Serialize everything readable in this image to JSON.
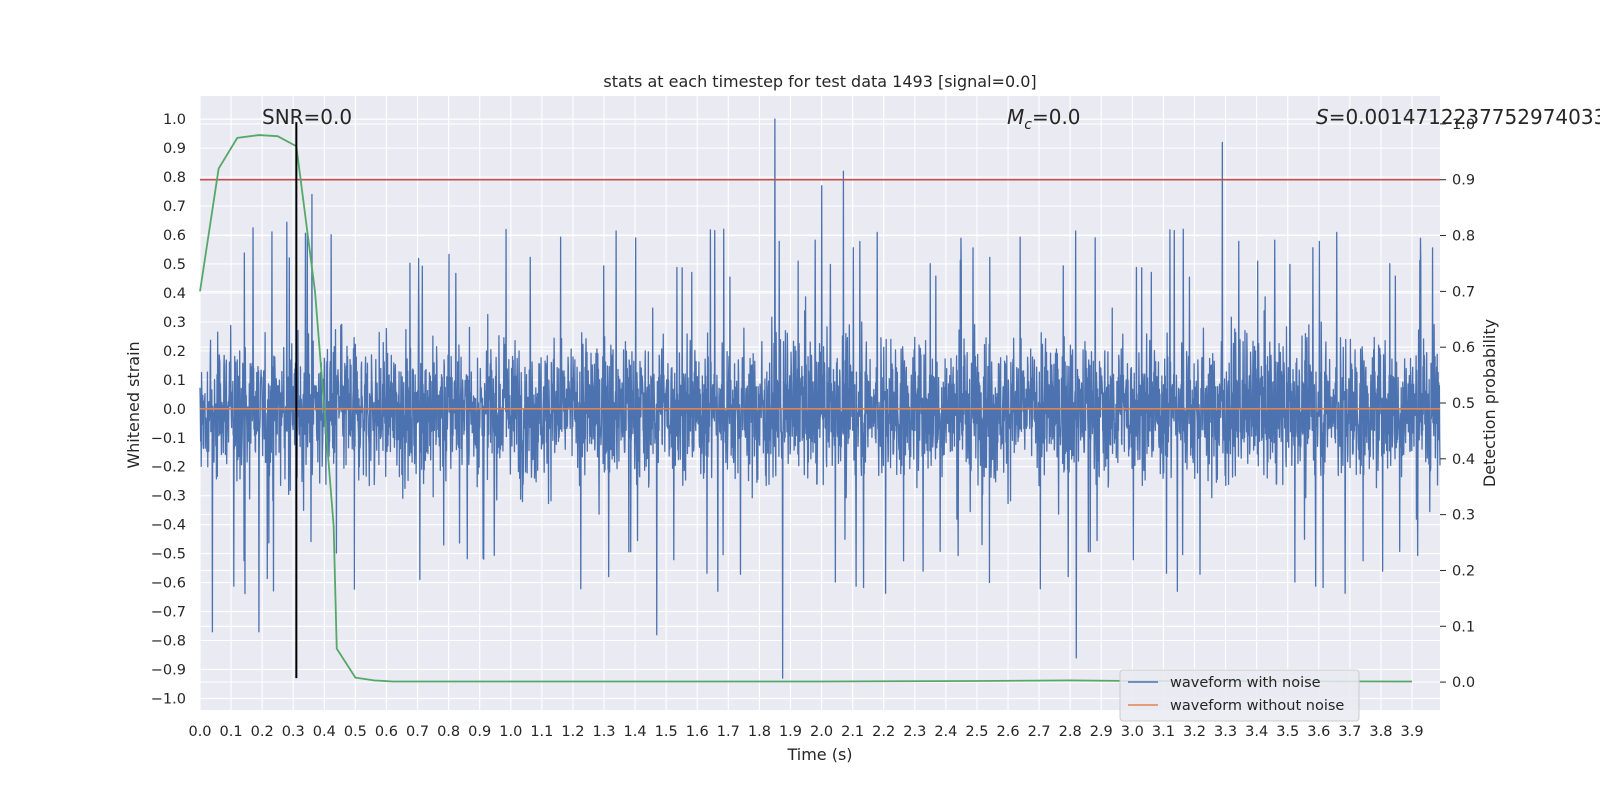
{
  "chart_data": {
    "type": "line",
    "title": "stats at each timestep for test data 1493 [signal=0.0]",
    "xlabel": "Time (s)",
    "ylabel": "Whitened strain",
    "y2label": "Detection probability",
    "xlim": [
      0.0,
      3.99
    ],
    "ylim": [
      -1.04,
      1.08
    ],
    "y2lim": [
      -0.05,
      1.05
    ],
    "x_ticks": [
      "0.0",
      "0.1",
      "0.2",
      "0.3",
      "0.4",
      "0.5",
      "0.6",
      "0.7",
      "0.8",
      "0.9",
      "1.0",
      "1.1",
      "1.2",
      "1.3",
      "1.4",
      "1.5",
      "1.6",
      "1.7",
      "1.8",
      "1.9",
      "2.0",
      "2.1",
      "2.2",
      "2.3",
      "2.4",
      "2.5",
      "2.6",
      "2.7",
      "2.8",
      "2.9",
      "3.0",
      "3.1",
      "3.2",
      "3.3",
      "3.4",
      "3.5",
      "3.6",
      "3.7",
      "3.8",
      "3.9"
    ],
    "y_ticks": [
      "1.0",
      "0.9",
      "0.8",
      "0.7",
      "0.6",
      "0.5",
      "0.4",
      "0.3",
      "0.2",
      "0.1",
      "0.0",
      "−0.1",
      "−0.2",
      "−0.3",
      "−0.4",
      "−0.5",
      "−0.6",
      "−0.7",
      "−0.8",
      "−0.9",
      "−1.0"
    ],
    "y2_ticks": [
      "1.0",
      "0.9",
      "0.8",
      "0.7",
      "0.6",
      "0.5",
      "0.4",
      "0.3",
      "0.2",
      "0.1",
      "0.0"
    ],
    "annotations": {
      "snr_label": "SNR=0.0",
      "mc_symbol": "M",
      "mc_sub": "c",
      "mc_value": "=0.0",
      "s_symbol": "S",
      "s_value": "=0.0014712237752974033"
    },
    "series": [
      {
        "name": "waveform with noise",
        "color": "#4c72b0",
        "kind": "noise",
        "n_points": 4000,
        "typical_range": [
          -0.35,
          0.35
        ],
        "spikes": [
          [
            1.85,
            1.0
          ],
          [
            1.875,
            -0.93
          ],
          [
            2.07,
            0.82
          ],
          [
            2.82,
            -0.86
          ],
          [
            3.29,
            0.92
          ],
          [
            0.04,
            -0.77
          ],
          [
            0.19,
            -0.77
          ],
          [
            0.36,
            0.74
          ],
          [
            1.47,
            -0.78
          ],
          [
            2.0,
            0.77
          ]
        ]
      },
      {
        "name": "waveform without noise",
        "color": "#dd8452",
        "x": [
          0.0,
          3.99
        ],
        "y": [
          0.0,
          0.0
        ]
      },
      {
        "name": "detection probability",
        "color": "#55a868",
        "axis": "right",
        "x": [
          0.0,
          0.06,
          0.12,
          0.19,
          0.25,
          0.31,
          0.37,
          0.43,
          0.44,
          0.5,
          0.56,
          0.62,
          1.0,
          2.0,
          2.5,
          2.8,
          3.0,
          3.9
        ],
        "y": [
          0.7,
          0.92,
          0.975,
          0.98,
          0.978,
          0.96,
          0.7,
          0.28,
          0.06,
          0.008,
          0.003,
          0.001,
          0.001,
          0.001,
          0.002,
          0.003,
          0.002,
          0.001
        ]
      },
      {
        "name": "threshold",
        "color": "#c44e52",
        "axis": "right",
        "x": [
          0.0,
          3.99
        ],
        "y": [
          0.9,
          0.9
        ]
      },
      {
        "name": "event marker",
        "color": "#000000",
        "kind": "vline",
        "x": [
          0.31,
          0.31
        ],
        "y": [
          -0.93,
          0.99
        ]
      }
    ],
    "legend": {
      "location": "lower-right",
      "entries": [
        "waveform with noise",
        "waveform without noise"
      ]
    },
    "grid": true
  }
}
